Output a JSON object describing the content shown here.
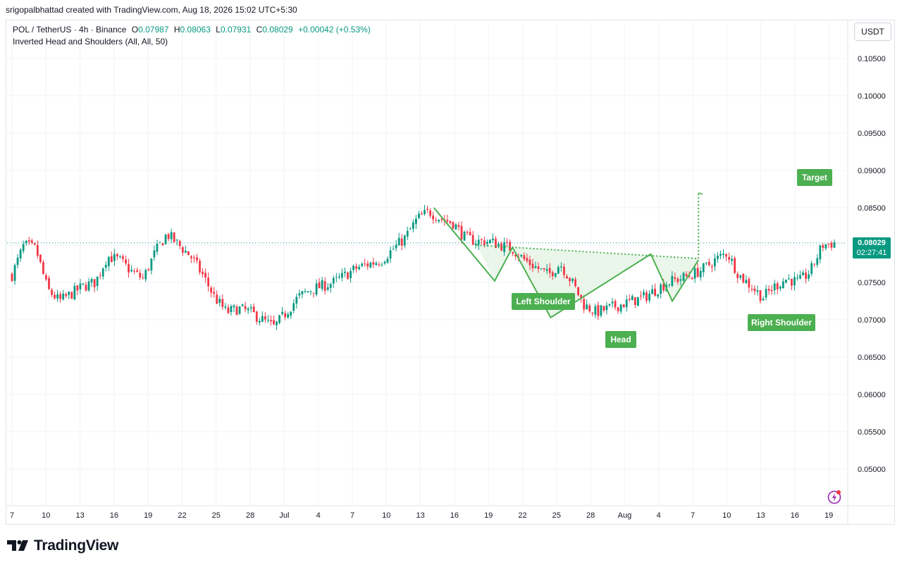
{
  "header": {
    "attribution": "srigopalbhattad created with TradingView.com, Aug 18, 2026 15:02 UTC+5:30"
  },
  "legend": {
    "symbol": "POL / TetherUS · 4h · Binance",
    "o_label": "O",
    "o_value": "0.07987",
    "h_label": "H",
    "h_value": "0.08063",
    "l_label": "L",
    "l_value": "0.07931",
    "c_label": "C",
    "c_value": "0.08029",
    "change": "+0.00042 (+0.53%)",
    "indicator": "Inverted Head and Shoulders (All, All, 50)"
  },
  "currency_button": "USDT",
  "current_price": {
    "price": "0.08029",
    "countdown": "02:27:41"
  },
  "pattern_labels": {
    "left_shoulder": "Left Shoulder",
    "head": "Head",
    "right_shoulder": "Right Shoulder",
    "target": "Target"
  },
  "branding": {
    "name": "TradingView"
  },
  "colors": {
    "up": "#089981",
    "down": "#f23645",
    "pattern": "#4caf50",
    "pattern_fill": "#e3f3e3",
    "grid": "#f0f3fa",
    "axis_text": "#131722"
  },
  "chart_data": {
    "type": "candlestick",
    "symbol": "POL/USDT",
    "interval": "4h",
    "y_axis": {
      "ticks": [
        0.105,
        0.1,
        0.095,
        0.09,
        0.085,
        0.08,
        0.075,
        0.07,
        0.065,
        0.06,
        0.055,
        0.05
      ],
      "tick_labels": [
        "0.10500",
        "0.10000",
        "0.09500",
        "0.09000",
        "0.08500",
        "0.08000",
        "0.07500",
        "0.07000",
        "0.06500",
        "0.06000",
        "0.05500",
        "0.05000"
      ]
    },
    "x_axis": {
      "tick_labels": [
        "7",
        "10",
        "13",
        "16",
        "19",
        "22",
        "25",
        "28",
        "Jul",
        "4",
        "7",
        "10",
        "13",
        "16",
        "19",
        "22",
        "25",
        "28",
        "Aug",
        "4",
        "7",
        "10",
        "13",
        "16",
        "19"
      ]
    },
    "price_path": [
      [
        0,
        0.076
      ],
      [
        1,
        0.08
      ],
      [
        2,
        0.0795
      ],
      [
        3,
        0.074
      ],
      [
        4,
        0.0725
      ],
      [
        5,
        0.0735
      ],
      [
        6,
        0.0745
      ],
      [
        7,
        0.075
      ],
      [
        8,
        0.0785
      ],
      [
        9,
        0.078
      ],
      [
        10,
        0.0765
      ],
      [
        11,
        0.0755
      ],
      [
        12,
        0.079
      ],
      [
        13,
        0.0815
      ],
      [
        14,
        0.08
      ],
      [
        15,
        0.0785
      ],
      [
        16,
        0.076
      ],
      [
        17,
        0.073
      ],
      [
        18,
        0.071
      ],
      [
        19,
        0.0715
      ],
      [
        20,
        0.071
      ],
      [
        21,
        0.07
      ],
      [
        22,
        0.069
      ],
      [
        23,
        0.071
      ],
      [
        24,
        0.073
      ],
      [
        25,
        0.074
      ],
      [
        26,
        0.0745
      ],
      [
        27,
        0.075
      ],
      [
        28,
        0.076
      ],
      [
        29,
        0.077
      ],
      [
        30,
        0.0775
      ],
      [
        31,
        0.078
      ],
      [
        32,
        0.0795
      ],
      [
        33,
        0.081
      ],
      [
        34,
        0.0835
      ],
      [
        35,
        0.0845
      ],
      [
        36,
        0.0835
      ],
      [
        37,
        0.083
      ],
      [
        38,
        0.081
      ],
      [
        39,
        0.0805
      ],
      [
        40,
        0.0805
      ],
      [
        41,
        0.08
      ],
      [
        42,
        0.0795
      ],
      [
        43,
        0.078
      ],
      [
        44,
        0.077
      ],
      [
        45,
        0.076
      ],
      [
        46,
        0.0775
      ],
      [
        47,
        0.075
      ],
      [
        48,
        0.072
      ],
      [
        49,
        0.071
      ],
      [
        50,
        0.0715
      ],
      [
        51,
        0.072
      ],
      [
        52,
        0.0725
      ],
      [
        53,
        0.073
      ],
      [
        54,
        0.074
      ],
      [
        55,
        0.075
      ],
      [
        56,
        0.0755
      ],
      [
        57,
        0.076
      ],
      [
        58,
        0.0768
      ],
      [
        59,
        0.078
      ],
      [
        60,
        0.079
      ],
      [
        61,
        0.076
      ],
      [
        62,
        0.0745
      ],
      [
        63,
        0.073
      ],
      [
        64,
        0.0745
      ],
      [
        65,
        0.0755
      ],
      [
        66,
        0.075
      ],
      [
        67,
        0.0765
      ],
      [
        68,
        0.08
      ],
      [
        69,
        0.0803
      ]
    ],
    "pattern": {
      "name": "Inverted Head and Shoulders",
      "points": [
        [
          35.4,
          0.085
        ],
        [
          40.5,
          0.0752
        ],
        [
          42.0,
          0.0797
        ],
        [
          45.2,
          0.0703
        ],
        [
          53.6,
          0.0788
        ],
        [
          55.4,
          0.0725
        ],
        [
          57.6,
          0.078
        ]
      ],
      "neckline": [
        [
          39.0,
          0.08
        ],
        [
          57.6,
          0.0782
        ]
      ],
      "target_line": [
        [
          57.6,
          0.0782
        ],
        [
          57.6,
          0.087
        ]
      ],
      "target_level": 0.0875
    },
    "last_price": 0.08029
  }
}
